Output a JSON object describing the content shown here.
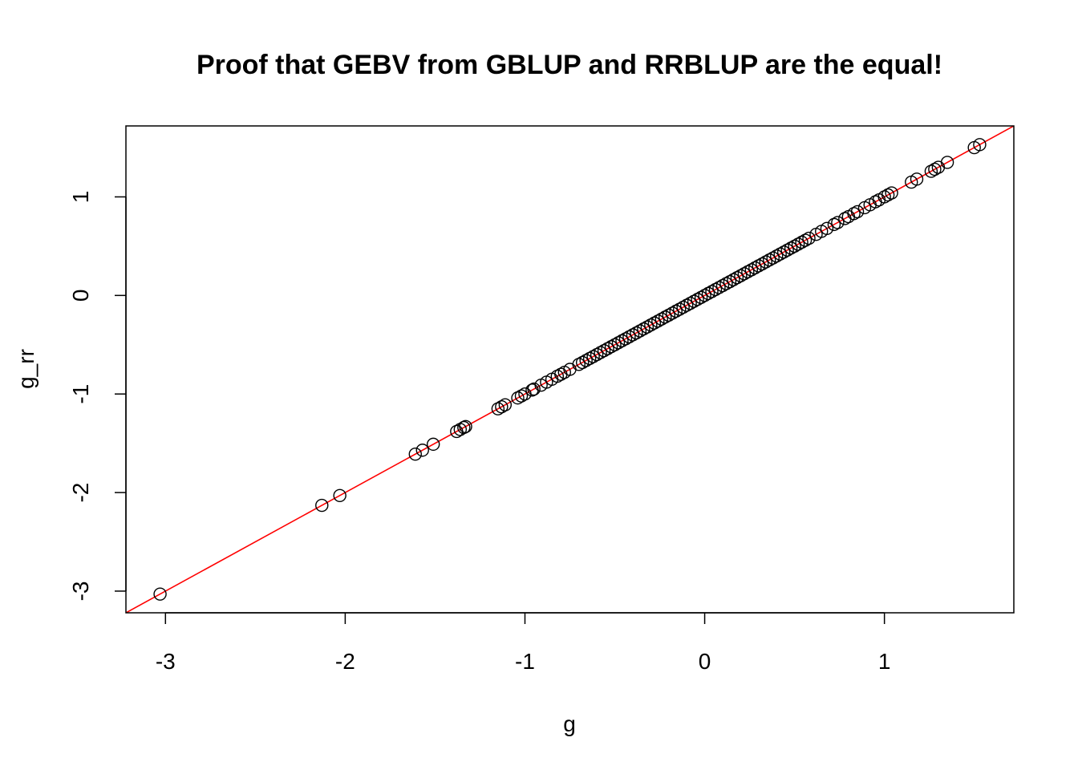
{
  "chart_data": {
    "type": "scatter",
    "title": "Proof that GEBV from GBLUP and RRBLUP are the equal!",
    "xlabel": "g",
    "ylabel": "g_rr",
    "xlim": [
      -3.22,
      1.72
    ],
    "ylim": [
      -3.22,
      1.72
    ],
    "xticks": [
      -3,
      -2,
      -1,
      0,
      1
    ],
    "yticks": [
      -3,
      -2,
      -1,
      0,
      1
    ],
    "grid": false,
    "legend": "none",
    "point_color": "#000000",
    "line_color": "#ff0000",
    "reference_line": {
      "type": "identity",
      "intercept": 0,
      "slope": 1
    },
    "points": [
      [
        -3.03,
        -3.03
      ],
      [
        -2.13,
        -2.13
      ],
      [
        -2.03,
        -2.03
      ],
      [
        -1.61,
        -1.61
      ],
      [
        -1.57,
        -1.57
      ],
      [
        -1.51,
        -1.51
      ],
      [
        -1.38,
        -1.38
      ],
      [
        -1.36,
        -1.36
      ],
      [
        -1.34,
        -1.34
      ],
      [
        -1.33,
        -1.33
      ],
      [
        -1.15,
        -1.15
      ],
      [
        -1.13,
        -1.13
      ],
      [
        -1.11,
        -1.11
      ],
      [
        -1.04,
        -1.04
      ],
      [
        -1.02,
        -1.02
      ],
      [
        -1.0,
        -1.0
      ],
      [
        -0.96,
        -0.96
      ],
      [
        -0.95,
        -0.95
      ],
      [
        -0.91,
        -0.91
      ],
      [
        -0.88,
        -0.88
      ],
      [
        -0.85,
        -0.85
      ],
      [
        -0.82,
        -0.82
      ],
      [
        -0.8,
        -0.8
      ],
      [
        -0.78,
        -0.78
      ],
      [
        -0.75,
        -0.75
      ],
      [
        -0.7,
        -0.7
      ],
      [
        -0.68,
        -0.68
      ],
      [
        -0.66,
        -0.66
      ],
      [
        -0.64,
        -0.64
      ],
      [
        -0.62,
        -0.62
      ],
      [
        -0.6,
        -0.6
      ],
      [
        -0.58,
        -0.58
      ],
      [
        -0.56,
        -0.56
      ],
      [
        -0.54,
        -0.54
      ],
      [
        -0.52,
        -0.52
      ],
      [
        -0.5,
        -0.5
      ],
      [
        -0.48,
        -0.48
      ],
      [
        -0.46,
        -0.46
      ],
      [
        -0.44,
        -0.44
      ],
      [
        -0.42,
        -0.42
      ],
      [
        -0.4,
        -0.4
      ],
      [
        -0.38,
        -0.38
      ],
      [
        -0.36,
        -0.36
      ],
      [
        -0.34,
        -0.34
      ],
      [
        -0.32,
        -0.32
      ],
      [
        -0.3,
        -0.3
      ],
      [
        -0.28,
        -0.28
      ],
      [
        -0.26,
        -0.26
      ],
      [
        -0.24,
        -0.24
      ],
      [
        -0.22,
        -0.22
      ],
      [
        -0.2,
        -0.2
      ],
      [
        -0.18,
        -0.18
      ],
      [
        -0.16,
        -0.16
      ],
      [
        -0.14,
        -0.14
      ],
      [
        -0.12,
        -0.12
      ],
      [
        -0.1,
        -0.1
      ],
      [
        -0.08,
        -0.08
      ],
      [
        -0.06,
        -0.06
      ],
      [
        -0.04,
        -0.04
      ],
      [
        -0.02,
        -0.02
      ],
      [
        0.0,
        0.0
      ],
      [
        0.02,
        0.02
      ],
      [
        0.04,
        0.04
      ],
      [
        0.06,
        0.06
      ],
      [
        0.08,
        0.08
      ],
      [
        0.1,
        0.1
      ],
      [
        0.12,
        0.12
      ],
      [
        0.14,
        0.14
      ],
      [
        0.16,
        0.16
      ],
      [
        0.18,
        0.18
      ],
      [
        0.2,
        0.2
      ],
      [
        0.22,
        0.22
      ],
      [
        0.24,
        0.24
      ],
      [
        0.26,
        0.26
      ],
      [
        0.28,
        0.28
      ],
      [
        0.3,
        0.3
      ],
      [
        0.32,
        0.32
      ],
      [
        0.34,
        0.34
      ],
      [
        0.36,
        0.36
      ],
      [
        0.38,
        0.38
      ],
      [
        0.4,
        0.4
      ],
      [
        0.42,
        0.42
      ],
      [
        0.44,
        0.44
      ],
      [
        0.46,
        0.46
      ],
      [
        0.48,
        0.48
      ],
      [
        0.5,
        0.5
      ],
      [
        0.52,
        0.52
      ],
      [
        0.54,
        0.54
      ],
      [
        0.56,
        0.56
      ],
      [
        0.58,
        0.58
      ],
      [
        0.62,
        0.62
      ],
      [
        0.65,
        0.65
      ],
      [
        0.68,
        0.68
      ],
      [
        0.72,
        0.72
      ],
      [
        0.74,
        0.74
      ],
      [
        0.78,
        0.78
      ],
      [
        0.8,
        0.8
      ],
      [
        0.83,
        0.83
      ],
      [
        0.85,
        0.85
      ],
      [
        0.89,
        0.89
      ],
      [
        0.92,
        0.92
      ],
      [
        0.95,
        0.95
      ],
      [
        0.97,
        0.97
      ],
      [
        1.0,
        1.0
      ],
      [
        1.02,
        1.02
      ],
      [
        1.04,
        1.04
      ],
      [
        1.15,
        1.15
      ],
      [
        1.18,
        1.18
      ],
      [
        1.26,
        1.26
      ],
      [
        1.28,
        1.28
      ],
      [
        1.3,
        1.3
      ],
      [
        1.35,
        1.35
      ],
      [
        1.5,
        1.5
      ],
      [
        1.53,
        1.53
      ]
    ]
  }
}
